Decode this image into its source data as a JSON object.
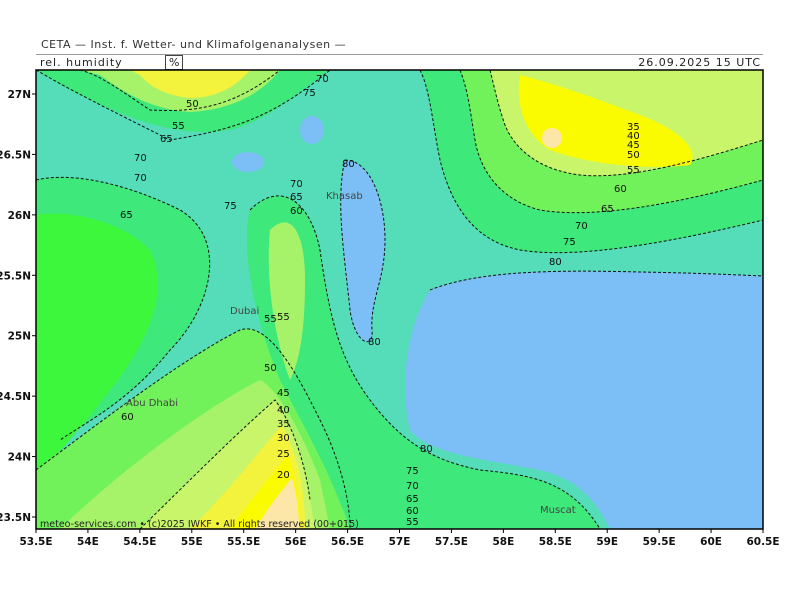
{
  "header": {
    "title": "CETA — Inst. f. Wetter- und Klimafolgenanalysen —",
    "variable": "rel. humidity",
    "unit": "%",
    "datetime": "26.09.2025 15 UTC"
  },
  "axes": {
    "x_ticks": [
      "53.5E",
      "54E",
      "54.5E",
      "55E",
      "55.5E",
      "56E",
      "56.5E",
      "57E",
      "57.5E",
      "58E",
      "58.5E",
      "59E",
      "59.5E",
      "60E",
      "60.5E"
    ],
    "y_ticks": [
      "27N",
      "26.5N",
      "26N",
      "25.5N",
      "25N",
      "24.5N",
      "24N",
      "23.5N"
    ]
  },
  "places": [
    {
      "name": "Khasab"
    },
    {
      "name": "Dubai"
    },
    {
      "name": "Abu Dhabi"
    },
    {
      "name": "Muscat"
    }
  ],
  "contour_labels": [
    "20",
    "25",
    "30",
    "35",
    "40",
    "45",
    "50",
    "55",
    "60",
    "65",
    "70",
    "75",
    "80"
  ],
  "footer": {
    "copyright": "meteo-services.com • (c)2025 IWKF • All rights reserved (00+015)"
  },
  "colors": {
    "80": "#7cbff7",
    "75": "#66d3e3",
    "70": "#55dcb8",
    "65": "#3ee87a",
    "60": "#3cf73c",
    "55": "#72f25a",
    "50": "#a6f36a",
    "45": "#c9f56a",
    "40": "#e7f25c",
    "35": "#f3f23c",
    "30": "#fbfb00",
    "25": "#fbf47c",
    "20": "#fce6a8"
  }
}
